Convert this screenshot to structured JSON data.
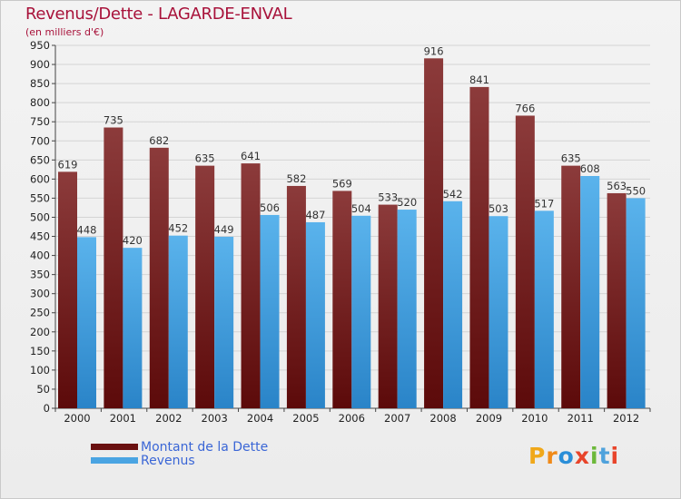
{
  "title": "Revenus/Dette - LAGARDE-ENVAL",
  "subtitle": "(en milliers d'€)",
  "logo": {
    "text": "Proxiti",
    "colors": [
      "#f0a81a",
      "#f08a18",
      "#2a8ed8",
      "#e8442a",
      "#6cb83a",
      "#4fa2dc",
      "#e8442a"
    ]
  },
  "colors": {
    "dette_top": "#8c3b3b",
    "dette_bottom": "#5c0a0a",
    "revenus_top": "#5ab3ec",
    "revenus_bottom": "#2a84c8",
    "title": "#a8123a",
    "legend_text": "#3a66d6"
  },
  "legend": [
    {
      "label": "Montant de la Dette",
      "color": "#6a1010"
    },
    {
      "label": "Revenus",
      "color": "#4aa4e2"
    }
  ],
  "chart_data": {
    "type": "bar",
    "title": "Revenus/Dette - LAGARDE-ENVAL",
    "subtitle": "(en milliers d'€)",
    "categories": [
      "2000",
      "2001",
      "2002",
      "2003",
      "2004",
      "2005",
      "2006",
      "2007",
      "2008",
      "2009",
      "2010",
      "2011",
      "2012"
    ],
    "series": [
      {
        "name": "Montant de la Dette",
        "values": [
          619,
          735,
          682,
          635,
          641,
          582,
          569,
          533,
          916,
          841,
          766,
          635,
          563
        ]
      },
      {
        "name": "Revenus",
        "values": [
          448,
          420,
          452,
          449,
          506,
          487,
          504,
          520,
          542,
          503,
          517,
          608,
          550
        ]
      }
    ],
    "yticks": [
      "0",
      "50",
      "100",
      "150",
      "200",
      "250",
      "300",
      "350",
      "400",
      "450",
      "500",
      "550",
      "600",
      "650",
      "700",
      "750",
      "800",
      "850",
      "900",
      "950"
    ],
    "ylim": [
      0,
      950
    ],
    "grid": true,
    "legend_position": "bottom-left"
  }
}
